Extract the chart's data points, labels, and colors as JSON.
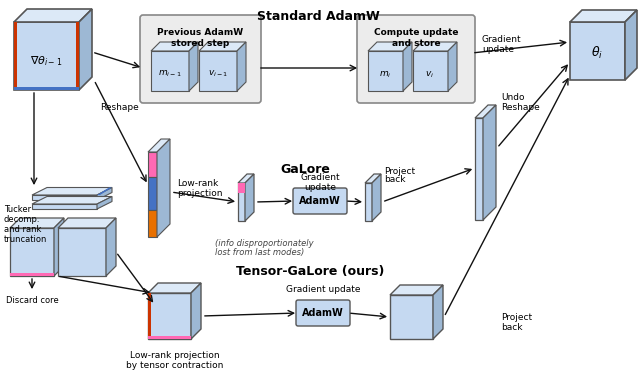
{
  "bg_color": "#ffffff",
  "title_standard": "Standard AdamW",
  "title_galore": "GaLore",
  "title_tensor": "Tensor-GaLore (ours)",
  "cube_face_color": "#c5d9f1",
  "cube_edge_color": "#555555",
  "cube_side_color": "#9db8d4",
  "cube_top_color": "#dce9f7",
  "box_fill": "#e8e8e8",
  "box_edge": "#777777",
  "adamw_fill": "#c5d9f1",
  "adamw_edge": "#555555",
  "arrow_color": "#111111",
  "pink_color": "#ff69b4",
  "blue_accent": "#4472c4",
  "orange_accent": "#e87000",
  "red_accent": "#cc3300"
}
